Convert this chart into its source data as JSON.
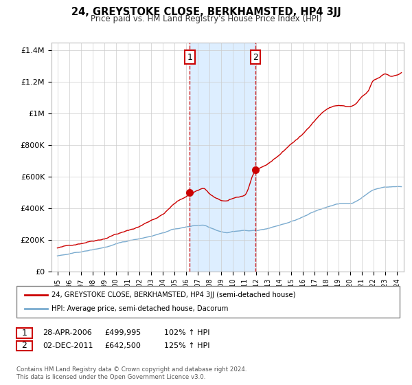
{
  "title": "24, GREYSTOKE CLOSE, BERKHAMSTED, HP4 3JJ",
  "subtitle": "Price paid vs. HM Land Registry's House Price Index (HPI)",
  "legend_line1": "24, GREYSTOKE CLOSE, BERKHAMSTED, HP4 3JJ (semi-detached house)",
  "legend_line2": "HPI: Average price, semi-detached house, Dacorum",
  "footnote": "Contains HM Land Registry data © Crown copyright and database right 2024.\nThis data is licensed under the Open Government Licence v3.0.",
  "line_color_red": "#cc0000",
  "line_color_blue": "#7aabcf",
  "shade_color": "#ddeeff",
  "background_color": "#ffffff",
  "plot_bg_color": "#ffffff",
  "grid_color": "#cccccc",
  "marker1_x": 2006.32,
  "marker1_y": 499995,
  "marker2_x": 2011.92,
  "marker2_y": 642500,
  "ylim": [
    0,
    1450000
  ],
  "xlim_start": 1994.5,
  "xlim_end": 2024.6,
  "yticks": [
    0,
    200000,
    400000,
    600000,
    800000,
    1000000,
    1200000,
    1400000
  ],
  "ytick_labels": [
    "£0",
    "£200K",
    "£400K",
    "£600K",
    "£800K",
    "£1M",
    "£1.2M",
    "£1.4M"
  ],
  "xticks": [
    1995,
    1996,
    1997,
    1998,
    1999,
    2000,
    2001,
    2002,
    2003,
    2004,
    2005,
    2006,
    2007,
    2008,
    2009,
    2010,
    2011,
    2012,
    2013,
    2014,
    2015,
    2016,
    2017,
    2018,
    2019,
    2020,
    2021,
    2022,
    2023,
    2024
  ]
}
